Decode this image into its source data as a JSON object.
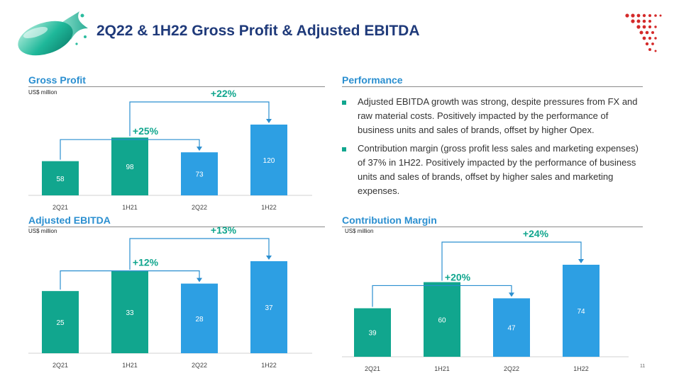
{
  "slide": {
    "title": "2Q22 & 1H22 Gross Profit & Adjusted EBITDA",
    "page_number": "11"
  },
  "colors": {
    "title": "#1f3a7a",
    "section": "#2b8fd0",
    "teal": "#11a68e",
    "blue": "#2d9fe3",
    "connector": "#2b8fd0",
    "growth_label": "#11a68e",
    "axis": "#d0d0d0"
  },
  "icons": {
    "logo": "teal-capsule-splash-logo",
    "brand": "red-dotted-arrow-mark"
  },
  "sections": {
    "gross_profit": {
      "title": "Gross Profit",
      "units": "US$ million"
    },
    "adjusted_ebitda": {
      "title": "Adjusted EBITDA",
      "units": "US$ million"
    },
    "performance": {
      "title": "Performance"
    },
    "contribution_margin": {
      "title": "Contribution Margin",
      "units": "US$ million"
    }
  },
  "performance": {
    "bullets": [
      "Adjusted EBITDA growth was strong, despite pressures from FX and raw material costs. Positively impacted by the performance of business units and sales of brands, offset by higher Opex.",
      "Contribution margin (gross profit less sales and marketing expenses) of 37% in 1H22. Positively impacted by the performance of business units and sales of brands, offset by higher sales and marketing expenses."
    ]
  },
  "chart_data": [
    {
      "id": "gross_profit",
      "type": "bar",
      "categories": [
        "2Q21",
        "1H21",
        "2Q22",
        "1H22"
      ],
      "values": [
        58,
        98,
        73,
        120
      ],
      "bar_colors": [
        "#11a68e",
        "#11a68e",
        "#2d9fe3",
        "#2d9fe3"
      ],
      "ylim": [
        0,
        120
      ],
      "growth": [
        {
          "from": "2Q21",
          "to": "2Q22",
          "label": "+25%"
        },
        {
          "from": "1H21",
          "to": "1H22",
          "label": "+22%"
        }
      ]
    },
    {
      "id": "adjusted_ebitda",
      "type": "bar",
      "categories": [
        "2Q21",
        "1H21",
        "2Q22",
        "1H22"
      ],
      "values": [
        25,
        33,
        28,
        37
      ],
      "bar_colors": [
        "#11a68e",
        "#11a68e",
        "#2d9fe3",
        "#2d9fe3"
      ],
      "ylim": [
        0,
        37
      ],
      "growth": [
        {
          "from": "2Q21",
          "to": "2Q22",
          "label": "+12%"
        },
        {
          "from": "1H21",
          "to": "1H22",
          "label": "+13%"
        }
      ]
    },
    {
      "id": "contribution_margin",
      "type": "bar",
      "categories": [
        "2Q21",
        "1H21",
        "2Q22",
        "1H22"
      ],
      "values": [
        39,
        60,
        47,
        74
      ],
      "bar_colors": [
        "#11a68e",
        "#11a68e",
        "#2d9fe3",
        "#2d9fe3"
      ],
      "ylim": [
        0,
        74
      ],
      "growth": [
        {
          "from": "2Q21",
          "to": "2Q22",
          "label": "+20%"
        },
        {
          "from": "1H21",
          "to": "1H22",
          "label": "+24%"
        }
      ]
    }
  ]
}
